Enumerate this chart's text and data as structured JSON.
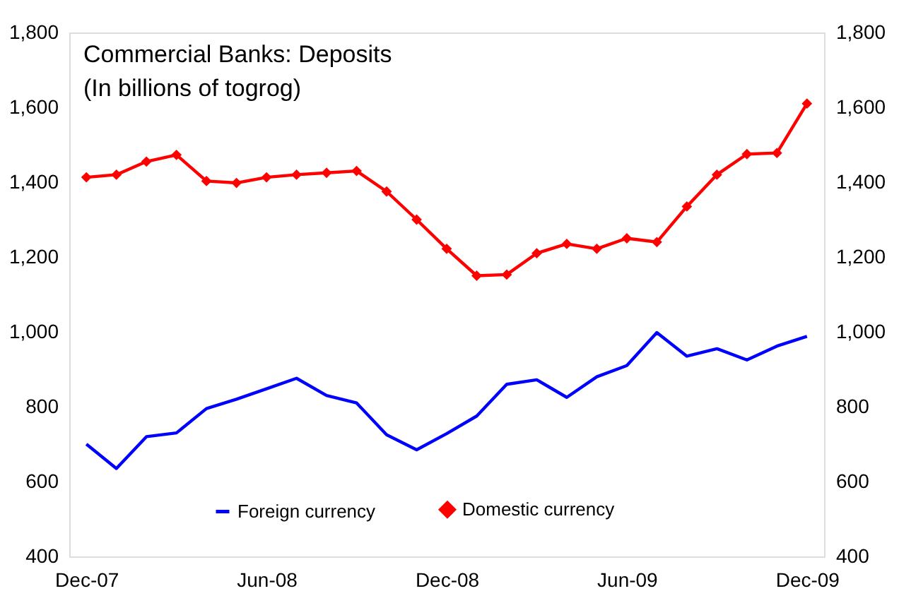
{
  "chart_data": {
    "type": "line",
    "title": "Commercial Banks: Deposits",
    "subtitle": "(In billions of togrog)",
    "categories": [
      "Dec-07",
      null,
      null,
      null,
      null,
      null,
      "Jun-08",
      null,
      null,
      null,
      null,
      null,
      "Dec-08",
      null,
      null,
      null,
      null,
      null,
      "Jun-09",
      null,
      null,
      null,
      null,
      null,
      "Dec-09"
    ],
    "series": [
      {
        "name": "Foreign currency",
        "color": "#0000ff",
        "marker": "none",
        "values": [
          700,
          635,
          720,
          730,
          795,
          820,
          848,
          876,
          830,
          810,
          725,
          685,
          728,
          775,
          860,
          872,
          825,
          880,
          910,
          998,
          935,
          955,
          925,
          962,
          988
        ]
      },
      {
        "name": "Domestic currency",
        "color": "#ff0000",
        "marker": "diamond",
        "values": [
          1413,
          1420,
          1455,
          1473,
          1403,
          1398,
          1413,
          1420,
          1425,
          1430,
          1375,
          1300,
          1222,
          1150,
          1153,
          1210,
          1235,
          1222,
          1250,
          1240,
          1335,
          1420,
          1475,
          1478,
          1610
        ]
      }
    ],
    "ylim": [
      400,
      1800
    ],
    "yticks": [
      400,
      600,
      800,
      {
        "value": 1000,
        "label": "1,000"
      },
      {
        "value": 1200,
        "label": "1,200"
      },
      {
        "value": 1400,
        "label": "1,400"
      },
      {
        "value": 1600,
        "label": "1,600"
      },
      {
        "value": 1800,
        "label": "1,800"
      }
    ],
    "y2lim": [
      400,
      1800
    ],
    "y2ticks": [
      400,
      600,
      800,
      {
        "value": 1000,
        "label": "1,000"
      },
      {
        "value": 1200,
        "label": "1,200"
      },
      {
        "value": 1400,
        "label": "1,400"
      },
      {
        "value": 1600,
        "label": "1,600"
      },
      {
        "value": 1800,
        "label": "1,800"
      }
    ],
    "grid": false,
    "legend": "bottom",
    "line_style": "solid"
  }
}
